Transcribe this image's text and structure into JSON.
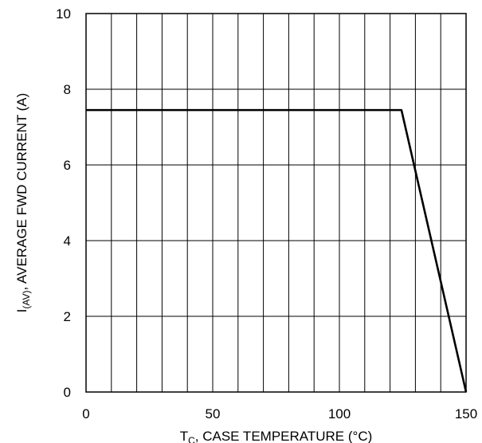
{
  "chart_data": {
    "type": "line",
    "xlabel": {
      "main": "T",
      "sub": "C",
      "rest": ", CASE TEMPERATURE (°C)"
    },
    "ylabel": {
      "main": "I",
      "sub": "(AV)",
      "rest": ", AVERAGE FWD CURRENT (A)"
    },
    "xlim": [
      0,
      150
    ],
    "ylim": [
      0,
      10
    ],
    "x_ticks": [
      0,
      50,
      100,
      150
    ],
    "x_tick_labels": [
      "0",
      "50",
      "100",
      "150"
    ],
    "y_ticks": [
      0,
      2,
      4,
      6,
      8,
      10
    ],
    "y_tick_labels": [
      "0",
      "2",
      "4",
      "6",
      "8",
      "10"
    ],
    "x_grid_step": 10,
    "y_grid_step": 2,
    "grid": true,
    "series": [
      {
        "x": [
          0,
          124.5,
          150
        ],
        "y": [
          7.45,
          7.45,
          0
        ]
      }
    ]
  }
}
